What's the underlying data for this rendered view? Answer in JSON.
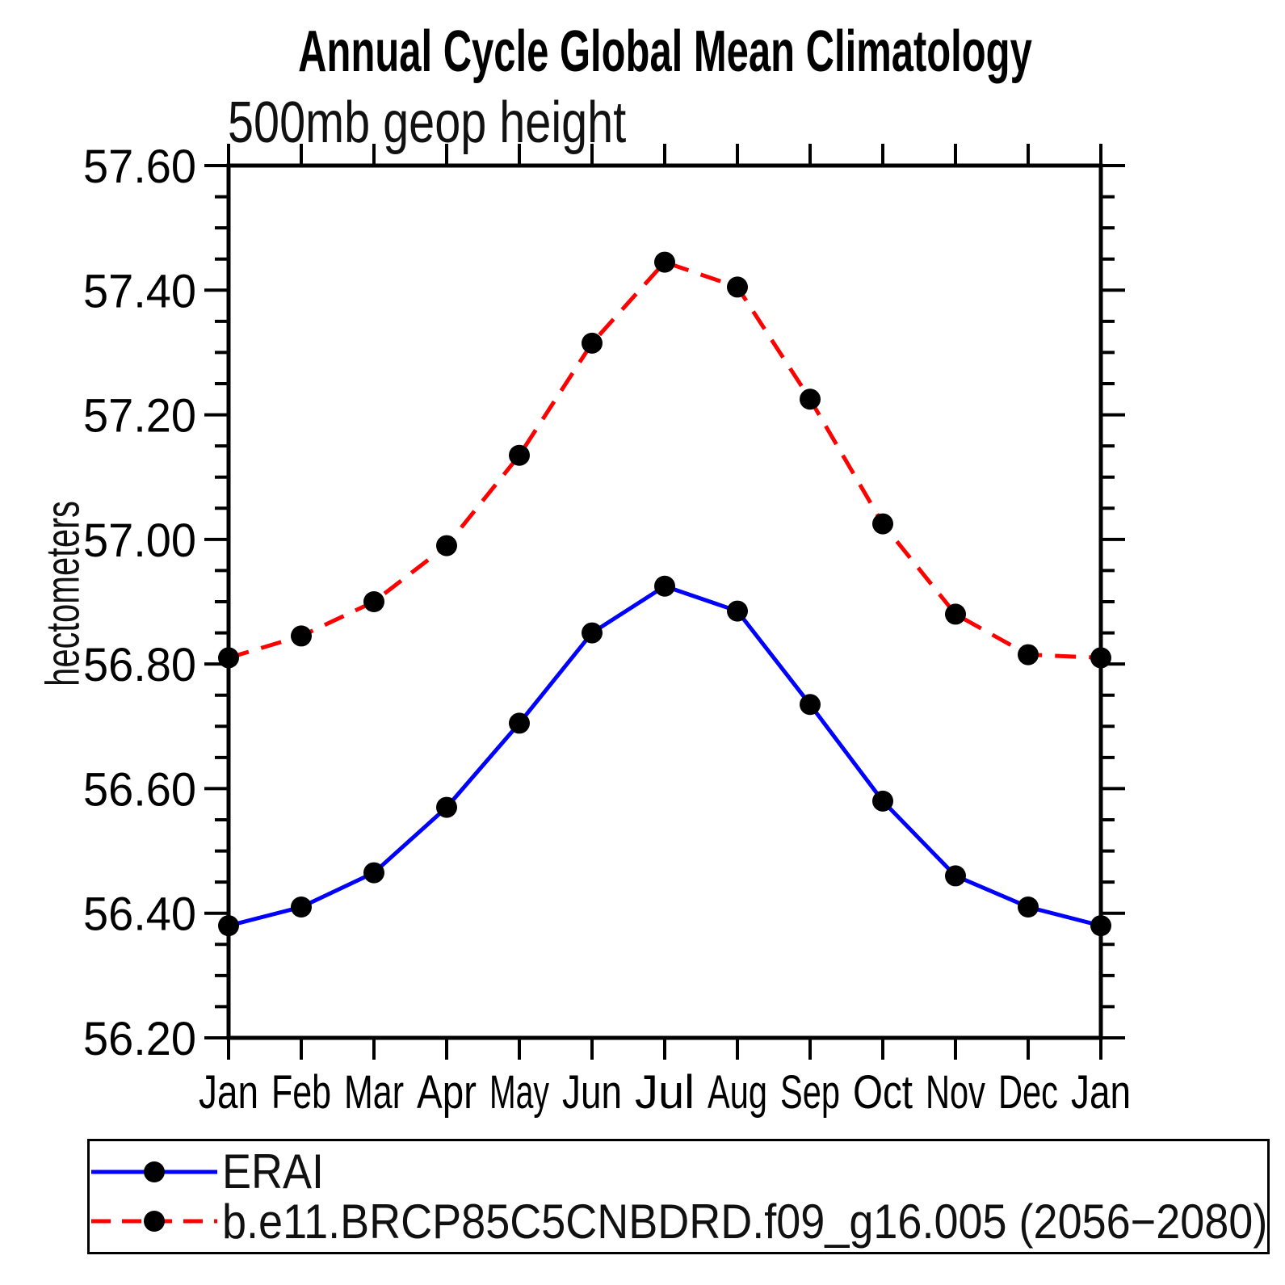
{
  "chart_data": {
    "type": "line",
    "title": "Annual Cycle Global Mean Climatology",
    "subtitle": "500mb geop height",
    "xlabel": "",
    "ylabel": "hectometers",
    "categories": [
      "Jan",
      "Feb",
      "Mar",
      "Apr",
      "May",
      "Jun",
      "Jul",
      "Aug",
      "Sep",
      "Oct",
      "Nov",
      "Dec",
      "Jan"
    ],
    "series": [
      {
        "name": "ERAI",
        "color": "#0000ff",
        "line_style": "solid",
        "marker": "black-filled-circle",
        "values": [
          56.38,
          56.41,
          56.465,
          56.57,
          56.705,
          56.85,
          56.925,
          56.885,
          56.735,
          56.58,
          56.46,
          56.41,
          56.38
        ]
      },
      {
        "name": "b.e11.BRCP85C5CNBDRD.f09_g16.005 (2056−2080)",
        "color": "#ff0000",
        "line_style": "dashed",
        "marker": "black-filled-circle",
        "values": [
          56.81,
          56.845,
          56.9,
          56.99,
          57.135,
          57.315,
          57.445,
          57.405,
          57.225,
          57.025,
          56.88,
          56.815,
          56.81
        ]
      }
    ],
    "ylim": [
      56.2,
      57.6
    ],
    "ytick_step": 0.2,
    "ytick_minor_step": 0.05,
    "ytick_labels": [
      "56.20",
      "56.40",
      "56.60",
      "56.80",
      "57.00",
      "57.20",
      "57.40",
      "57.60"
    ],
    "grid": false,
    "frame": "full-box-with-outward-ticks",
    "legend_position": "bottom-left-box",
    "axis_color": "#000000",
    "marker_color": "#000000"
  },
  "legend": {
    "entries": [
      {
        "label": "ERAI",
        "color": "#0000ff",
        "dash": "solid"
      },
      {
        "label": "b.e11.BRCP85C5CNBDRD.f09_g16.005 (2056−2080)",
        "color": "#ff0000",
        "dash": "dashed"
      }
    ]
  }
}
